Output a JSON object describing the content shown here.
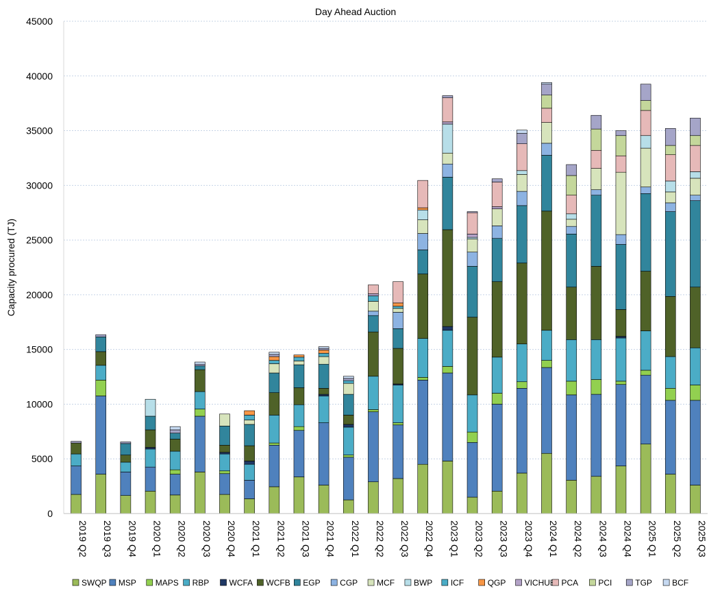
{
  "chart_data": {
    "type": "bar",
    "stacked": true,
    "title": "Day Ahead Auction",
    "ylabel": "Capacity procured (TJ)",
    "xlabel": "",
    "ylim": [
      0,
      45000
    ],
    "yticks": [
      0,
      5000,
      10000,
      15000,
      20000,
      25000,
      30000,
      35000,
      40000,
      45000
    ],
    "grid": "horizontal-dotted",
    "legend_position": "bottom",
    "categories": [
      "2019 Q2",
      "2019 Q3",
      "2019 Q4",
      "2020 Q1",
      "2020 Q2",
      "2020 Q3",
      "2020 Q4",
      "2021 Q1",
      "2021 Q2",
      "2021 Q3",
      "2021 Q4",
      "2022 Q1",
      "2022 Q2",
      "2022 Q3",
      "2022 Q4",
      "2023 Q1",
      "2023 Q2",
      "2023 Q3",
      "2023 Q4",
      "2024 Q1",
      "2024 Q2",
      "2024 Q3",
      "2024 Q4",
      "2025 Q1",
      "2025 Q2",
      "2025 Q3"
    ],
    "series": [
      {
        "name": "SWQP",
        "color": "#9bbb59",
        "values": [
          1750,
          3600,
          1650,
          2050,
          1700,
          3800,
          1750,
          1350,
          2450,
          3350,
          2600,
          1250,
          2900,
          3200,
          4500,
          4800,
          1500,
          2050,
          3700,
          5500,
          3050,
          3400,
          4350,
          6350,
          3600,
          2600
        ]
      },
      {
        "name": "MSP",
        "color": "#4f81bd",
        "values": [
          2600,
          7150,
          2150,
          2200,
          1900,
          5100,
          1900,
          1700,
          3800,
          4250,
          5700,
          3900,
          6400,
          4900,
          7700,
          8050,
          5000,
          7950,
          7750,
          7850,
          7800,
          7500,
          7450,
          6300,
          6750,
          7750
        ]
      },
      {
        "name": "MAPS",
        "color": "#92d050",
        "values": [
          0,
          1450,
          0,
          0,
          400,
          650,
          250,
          0,
          200,
          350,
          0,
          200,
          200,
          200,
          250,
          600,
          950,
          1000,
          600,
          650,
          1250,
          1350,
          300,
          450,
          1100,
          1400
        ]
      },
      {
        "name": "RBP",
        "color": "#4bacc6",
        "values": [
          1100,
          1350,
          900,
          1650,
          1700,
          1600,
          1550,
          1450,
          2550,
          2000,
          2450,
          2550,
          3050,
          3450,
          3550,
          3300,
          3400,
          3300,
          3450,
          2750,
          3800,
          3650,
          3950,
          3600,
          2900,
          3400
        ]
      },
      {
        "name": "WCFA",
        "color": "#1f3864",
        "values": [
          0,
          0,
          0,
          150,
          0,
          0,
          150,
          300,
          0,
          0,
          150,
          250,
          0,
          100,
          0,
          350,
          0,
          0,
          0,
          0,
          0,
          0,
          150,
          0,
          0,
          0
        ]
      },
      {
        "name": "WCFB",
        "color": "#4f6228",
        "values": [
          1000,
          1250,
          650,
          1600,
          1100,
          2000,
          650,
          1400,
          2050,
          1550,
          550,
          850,
          4050,
          3250,
          5900,
          8850,
          7100,
          6900,
          7400,
          10900,
          4800,
          6700,
          2450,
          5450,
          5500,
          5550
        ]
      },
      {
        "name": "EGP",
        "color": "#31859c",
        "values": [
          0,
          1350,
          1050,
          1250,
          550,
          350,
          1750,
          1950,
          1800,
          2100,
          2200,
          1900,
          1500,
          1800,
          2200,
          4800,
          4650,
          3950,
          5250,
          5100,
          4850,
          6500,
          5950,
          7100,
          7750,
          7900
        ]
      },
      {
        "name": "CGP",
        "color": "#8db3e2",
        "values": [
          0,
          0,
          0,
          0,
          0,
          0,
          0,
          0,
          0,
          0,
          0,
          0,
          400,
          1500,
          1500,
          1200,
          1300,
          1150,
          1300,
          1100,
          700,
          500,
          900,
          600,
          800,
          500
        ]
      },
      {
        "name": "MCF",
        "color": "#d7e4bc",
        "values": [
          0,
          0,
          0,
          0,
          0,
          0,
          1100,
          400,
          850,
          350,
          700,
          1000,
          900,
          350,
          1250,
          1000,
          1200,
          1550,
          1550,
          1900,
          650,
          1950,
          5700,
          3550,
          1000,
          1550
        ]
      },
      {
        "name": "BWP",
        "color": "#b7dee8",
        "values": [
          0,
          0,
          0,
          1550,
          0,
          0,
          0,
          0,
          0,
          0,
          0,
          0,
          0,
          0,
          900,
          2650,
          150,
          0,
          350,
          0,
          500,
          0,
          0,
          1150,
          1000,
          600
        ]
      },
      {
        "name": "ICF",
        "color": "#4bacc6",
        "values": [
          0,
          0,
          0,
          0,
          0,
          0,
          0,
          450,
          300,
          350,
          300,
          250,
          500,
          200,
          0,
          0,
          0,
          0,
          0,
          0,
          0,
          0,
          0,
          0,
          0,
          0
        ]
      },
      {
        "name": "QGP",
        "color": "#f79646",
        "values": [
          0,
          0,
          0,
          0,
          0,
          0,
          0,
          400,
          350,
          200,
          300,
          0,
          0,
          300,
          200,
          0,
          0,
          0,
          0,
          0,
          0,
          0,
          0,
          0,
          0,
          0
        ]
      },
      {
        "name": "VICHUB",
        "color": "#b3a2c7",
        "values": [
          0,
          0,
          0,
          0,
          0,
          0,
          0,
          0,
          0,
          0,
          0,
          0,
          200,
          0,
          0,
          200,
          300,
          200,
          0,
          0,
          0,
          0,
          0,
          0,
          0,
          0
        ]
      },
      {
        "name": "PCA",
        "color": "#e6b9b8",
        "values": [
          0,
          0,
          0,
          0,
          0,
          0,
          0,
          0,
          0,
          0,
          0,
          0,
          800,
          1950,
          2500,
          2200,
          1950,
          2250,
          2450,
          1300,
          1700,
          1650,
          1500,
          2300,
          2400,
          2400
        ]
      },
      {
        "name": "PCI",
        "color": "#c4d79b",
        "values": [
          0,
          0,
          0,
          0,
          0,
          0,
          0,
          0,
          0,
          0,
          0,
          0,
          0,
          0,
          0,
          0,
          0,
          0,
          0,
          1200,
          1800,
          1950,
          1850,
          900,
          850,
          900
        ]
      },
      {
        "name": "TGP",
        "color": "#a5a5c8",
        "values": [
          150,
          200,
          150,
          0,
          300,
          150,
          0,
          0,
          200,
          0,
          150,
          200,
          0,
          0,
          0,
          200,
          100,
          300,
          950,
          1000,
          1000,
          1250,
          450,
          1500,
          1550,
          1600
        ]
      },
      {
        "name": "BCF",
        "color": "#c6d9f1",
        "values": [
          0,
          0,
          0,
          0,
          300,
          200,
          0,
          0,
          200,
          0,
          150,
          200,
          0,
          0,
          0,
          0,
          0,
          0,
          300,
          150,
          0,
          0,
          0,
          0,
          0,
          0
        ]
      }
    ]
  }
}
